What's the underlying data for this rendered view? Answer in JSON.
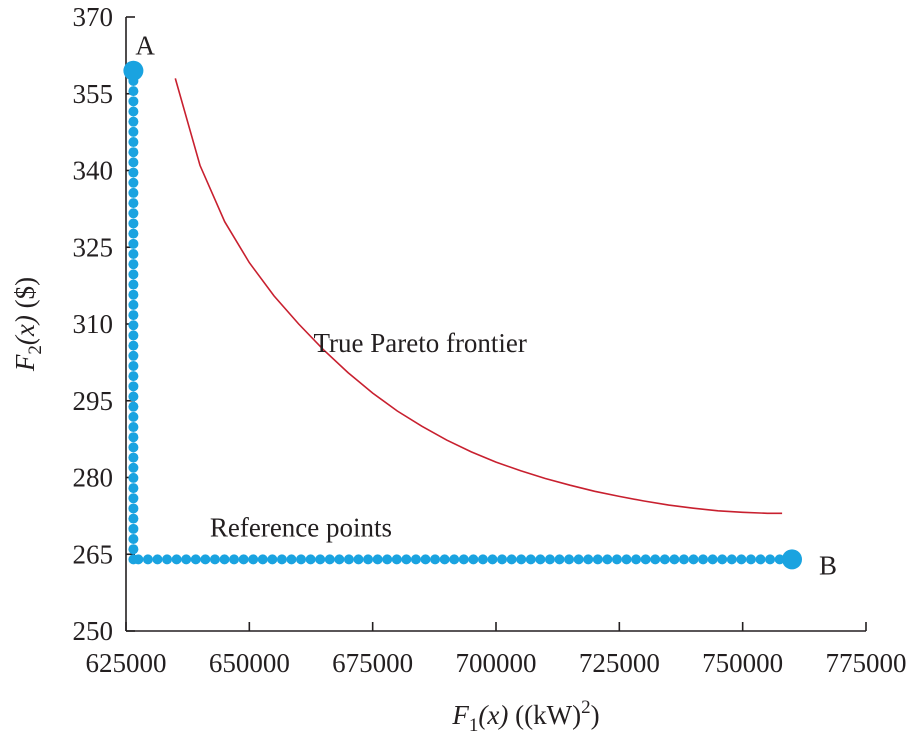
{
  "chart_data": {
    "type": "scatter",
    "title": "",
    "xlabel": {
      "main": "F",
      "sub": "1",
      "arg": "(x)",
      "unit_open": " ((kW)",
      "unit_sup": "2",
      "unit_close": ")"
    },
    "ylabel": {
      "main": "F",
      "sub": "2",
      "arg": "(x)",
      "unit": " ($)"
    },
    "xlim": [
      625000,
      775000
    ],
    "ylim": [
      250,
      370
    ],
    "xticks": [
      625000,
      650000,
      675000,
      700000,
      725000,
      750000,
      775000
    ],
    "xtick_labels": [
      "625000",
      "650000",
      "675000",
      "700000",
      "725000",
      "750000",
      "775000"
    ],
    "yticks": [
      250,
      265,
      280,
      295,
      310,
      325,
      340,
      355,
      370
    ],
    "ytick_labels": [
      "250",
      "265",
      "280",
      "295",
      "310",
      "325",
      "340",
      "355",
      "370"
    ],
    "grid": false,
    "colors": {
      "points": "#1aa3e0",
      "frontier": "#c8202f",
      "axes": "#231f20"
    },
    "series": [
      {
        "name": "True Pareto frontier",
        "kind": "line",
        "x": [
          635000,
          640000,
          645000,
          650000,
          655000,
          660000,
          665000,
          670000,
          675000,
          680000,
          685000,
          690000,
          695000,
          700000,
          705000,
          710000,
          715000,
          720000,
          725000,
          730000,
          735000,
          740000,
          745000,
          750000,
          755000,
          758000
        ],
        "y": [
          358,
          341,
          330,
          322,
          315.5,
          310,
          305,
          300.5,
          296.5,
          293,
          290,
          287.3,
          285,
          283,
          281.3,
          279.8,
          278.5,
          277.3,
          276.3,
          275.4,
          274.6,
          274,
          273.5,
          273.2,
          273,
          273
        ]
      },
      {
        "name": "Reference points",
        "kind": "points",
        "vertical": {
          "x": 626500,
          "y_from": 264,
          "y_to": 357.5,
          "count": 48
        },
        "horizontal": {
          "y": 264,
          "x_from": 627500,
          "x_to": 757500,
          "count": 68
        }
      }
    ],
    "endpoints": [
      {
        "label": "A",
        "x": 626500,
        "y": 359.5
      },
      {
        "label": "B",
        "x": 760000,
        "y": 264
      }
    ],
    "annotations": [
      {
        "text": "True Pareto frontier",
        "x": 663000,
        "y": 304.5
      },
      {
        "text": "Reference points",
        "x": 642000,
        "y": 268.5
      }
    ]
  }
}
